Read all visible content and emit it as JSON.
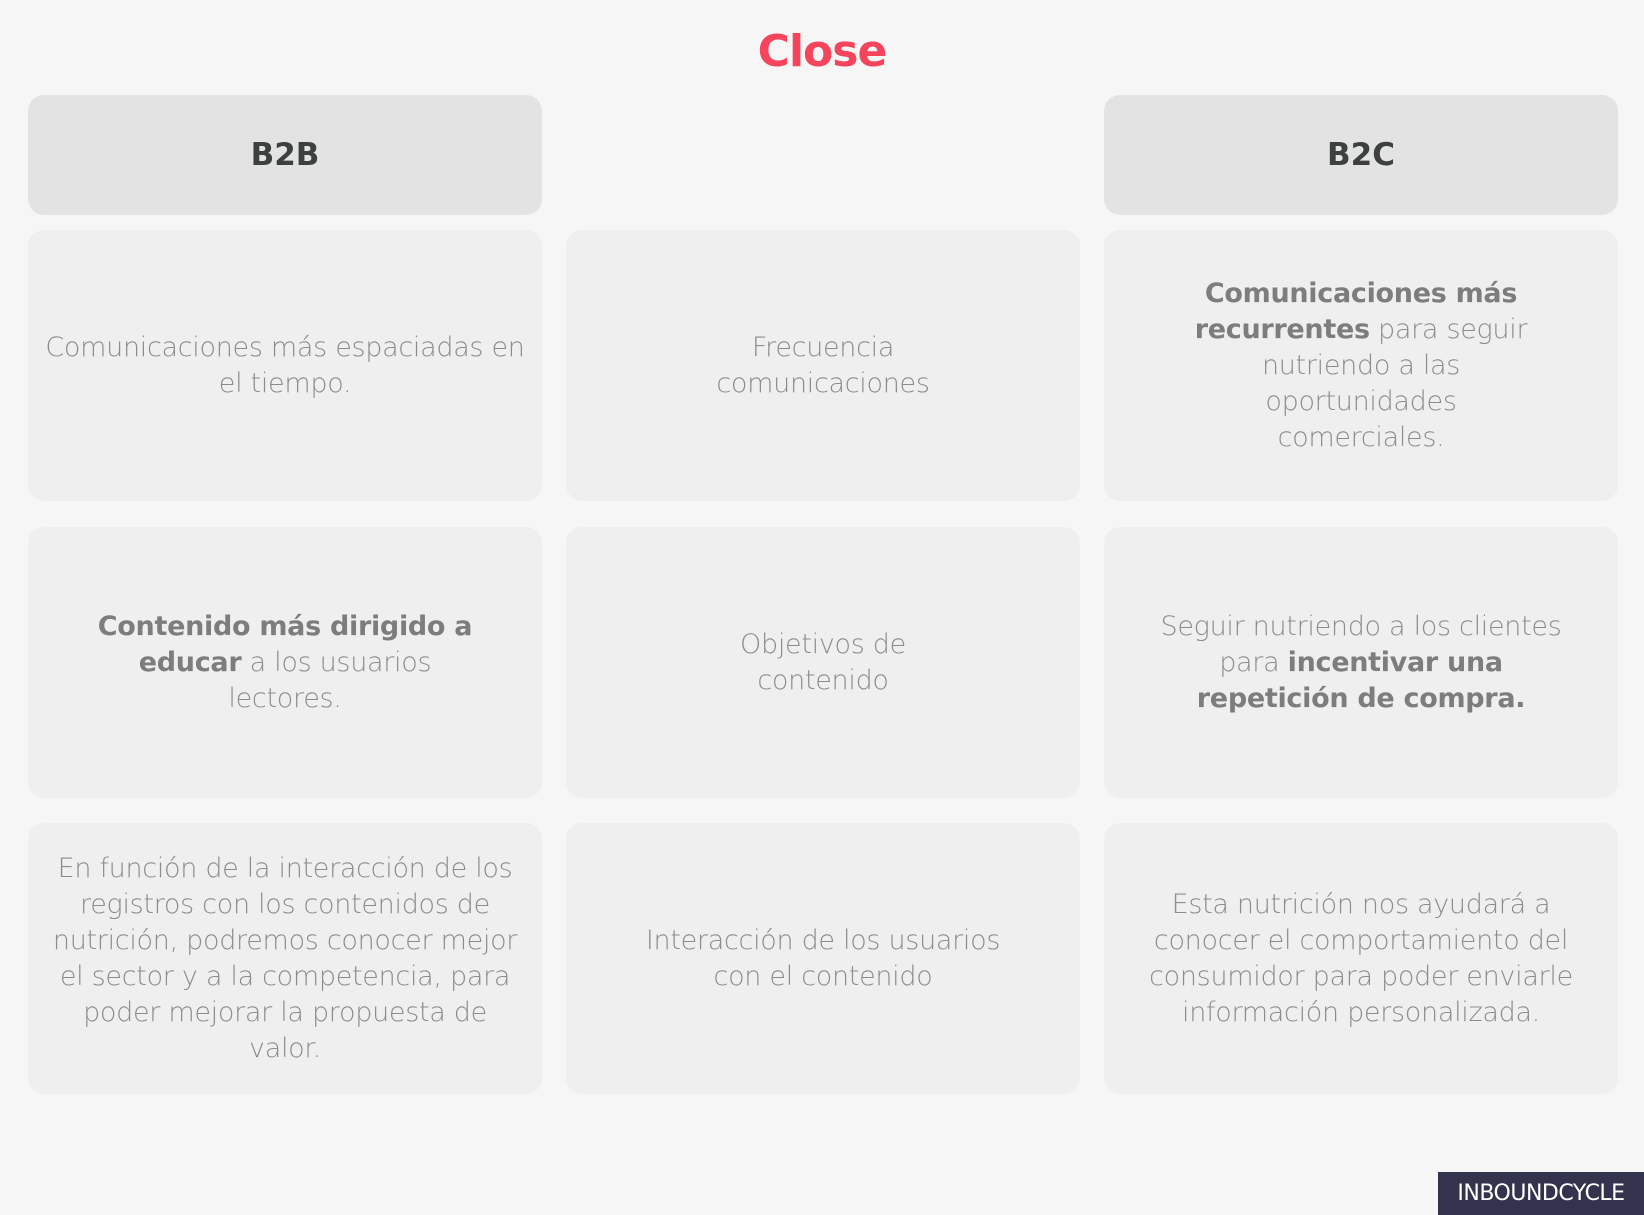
{
  "title": "Close",
  "colors": {
    "title": "#f5455c",
    "header_bg": "#e3e3e3",
    "card_bg": "#efefef",
    "logo_bg": "#33334d"
  },
  "headers": {
    "left": "B2B",
    "right": "B2C"
  },
  "rows": [
    {
      "b2b": [
        {
          "t": "Comunicaciones más espaciadas en el tiempo.",
          "bold": false
        }
      ],
      "criterion": "Frecuencia comunicaciones",
      "b2c": [
        {
          "t": "Comunicaciones más recurrentes",
          "bold": true
        },
        {
          "t": " para seguir nutriendo a las oportunidades comerciales.",
          "bold": false
        }
      ]
    },
    {
      "b2b": [
        {
          "t": "Contenido más dirigido a educar",
          "bold": true
        },
        {
          "t": " a los usuarios lectores.",
          "bold": false
        }
      ],
      "criterion": "Objetivos de contenido",
      "b2c": [
        {
          "t": "Seguir nutriendo a los clientes para ",
          "bold": false
        },
        {
          "t": "incentivar una repetición de compra.",
          "bold": true
        }
      ]
    },
    {
      "b2b": [
        {
          "t": "En función de la interacción de los registros con los contenidos de nutrición, podremos conocer mejor el sector y a la competencia, para poder mejorar la propuesta de valor.",
          "bold": false
        }
      ],
      "criterion": "Interacción de los usuarios con el contenido",
      "b2c": [
        {
          "t": "Esta nutrición nos ayudará a conocer el comportamiento del consumidor para poder enviarle información personalizada.",
          "bold": false
        }
      ]
    }
  ],
  "logo": "INBOUNDCYCLE"
}
